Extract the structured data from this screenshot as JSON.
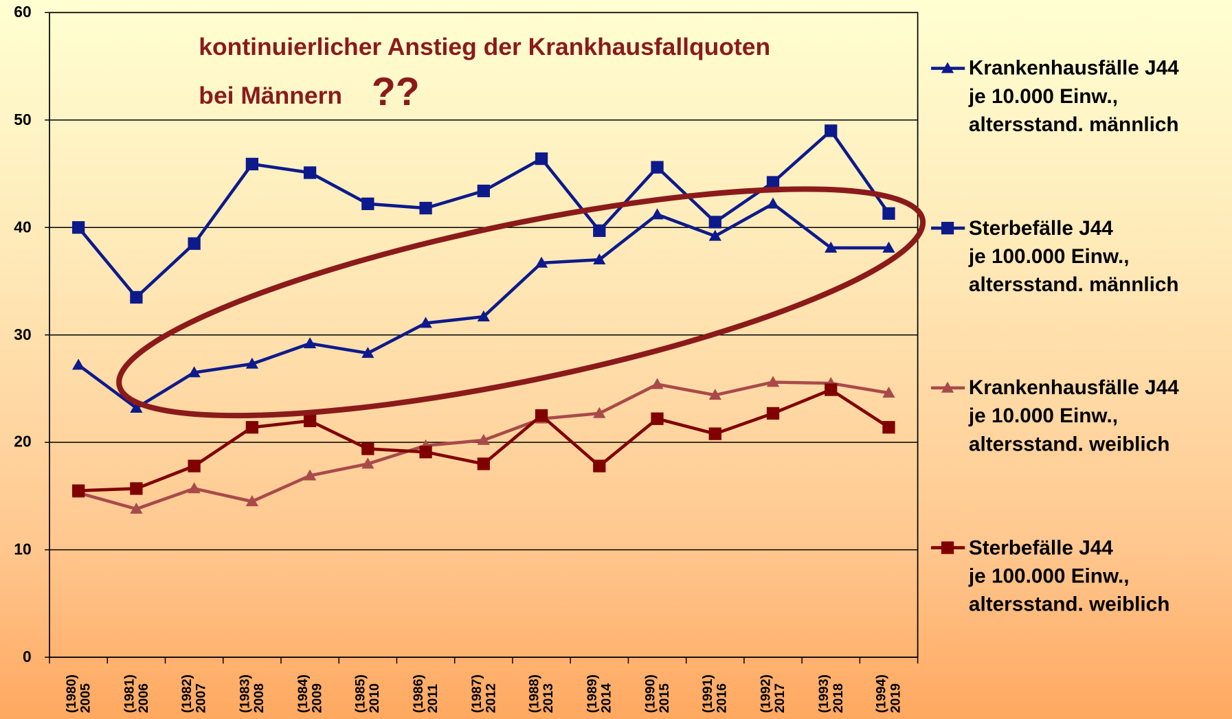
{
  "chart_data": {
    "type": "line",
    "annotations": [
      "kontinuierlicher Anstieg der Krankhausfallquoten",
      "bei Männern",
      "??"
    ],
    "categories": [
      "(1980)\n2005",
      "(1981)\n2006",
      "(1982)\n2007",
      "(1983)\n2008",
      "(1984)\n2009",
      "(1985)\n2010",
      "(1986)\n2011",
      "(1987)\n2012",
      "(1988)\n2013",
      "(1989)\n2014",
      "(1990)\n2015",
      "(1991)\n2016",
      "(1992)\n2017",
      "(1993)\n2018",
      "(1994)\n2019"
    ],
    "series": [
      {
        "name": "Krankenhausfälle J44\nje 10.000 Einw.,\naltersstand. männlich",
        "color": "#0d1a8c",
        "marker": "triangle",
        "values": [
          27.2,
          23.2,
          26.5,
          27.3,
          29.2,
          28.3,
          31.1,
          31.7,
          36.7,
          37.0,
          41.2,
          39.2,
          42.2,
          38.1,
          38.1
        ]
      },
      {
        "name": "Sterbefälle J44\nje 100.000 Einw.,\naltersstand. männlich",
        "color": "#0d1a8c",
        "marker": "square",
        "values": [
          40.0,
          33.5,
          38.5,
          45.9,
          45.1,
          42.2,
          41.8,
          43.4,
          46.4,
          39.7,
          45.6,
          40.5,
          44.2,
          49.0,
          41.3
        ]
      },
      {
        "name": "Krankenhausfälle J44\nje 10.000 Einw.,\naltersstand. weiblich",
        "color": "#a94a4a",
        "marker": "triangle",
        "values": [
          15.3,
          13.8,
          15.7,
          14.5,
          16.9,
          18.0,
          19.7,
          20.2,
          22.2,
          22.7,
          25.4,
          24.4,
          25.6,
          25.5,
          24.6
        ]
      },
      {
        "name": "Sterbefälle J44\nje 100.000 Einw.,\naltersstand. weiblich",
        "color": "#800000",
        "marker": "square",
        "values": [
          15.5,
          15.7,
          17.8,
          21.4,
          22.0,
          19.4,
          19.1,
          18.0,
          22.5,
          17.8,
          22.2,
          20.8,
          22.7,
          24.9,
          21.4
        ]
      }
    ],
    "ylim": [
      0,
      60
    ],
    "yticks": [
      0,
      10,
      20,
      30,
      40,
      50,
      60
    ],
    "grid": true,
    "legend": "right"
  }
}
